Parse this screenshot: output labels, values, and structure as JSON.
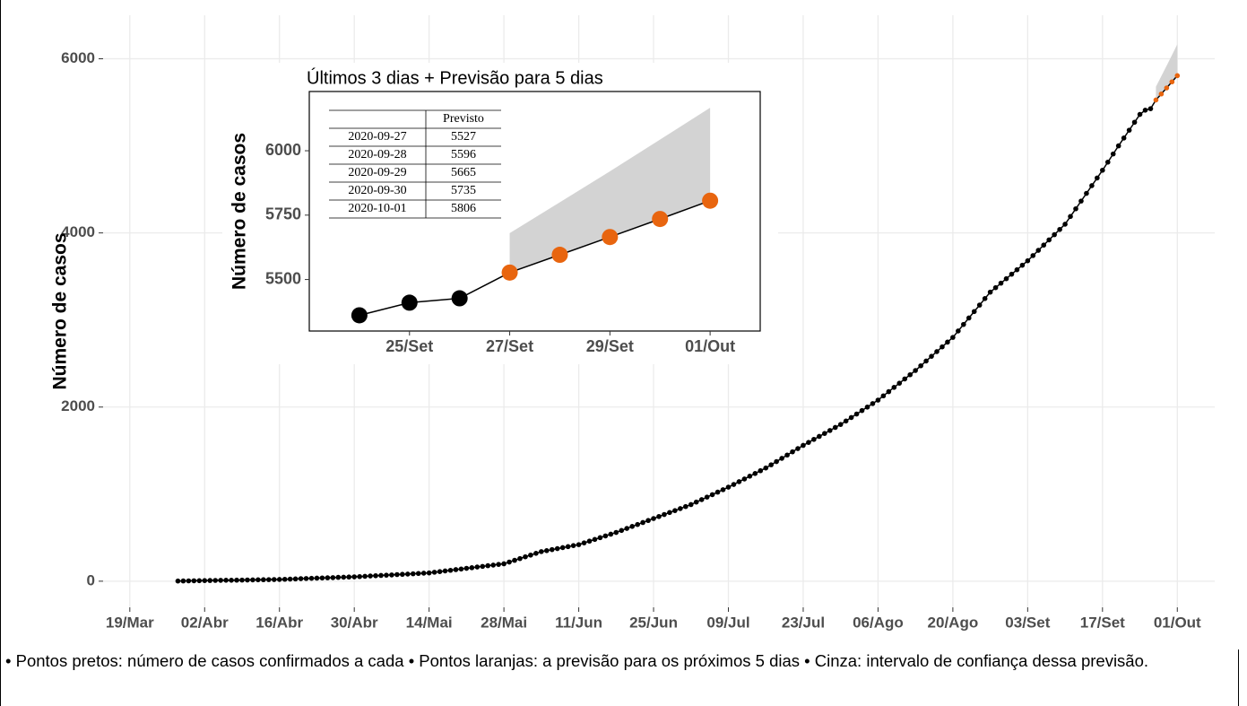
{
  "chart_data": [
    {
      "type": "line",
      "y_label": "Número de casos",
      "xlim": [
        "14/Mar",
        "08/Out"
      ],
      "xticks": [
        "19/Mar",
        "02/Abr",
        "16/Abr",
        "30/Abr",
        "14/Mai",
        "28/Mai",
        "11/Jun",
        "25/Jun",
        "09/Jul",
        "23/Jul",
        "06/Ago",
        "20/Ago",
        "03/Set",
        "17/Set",
        "01/Out"
      ],
      "ylim": [
        -300,
        6500
      ],
      "yticks": [
        0,
        2000,
        4000,
        6000
      ],
      "grid": true,
      "series": [
        {
          "color": "#000000",
          "x": [
            "28/Mar",
            "29/Mar",
            "30/Mar",
            "31/Mar",
            "01/Abr",
            "02/Abr",
            "03/Abr",
            "04/Abr",
            "05/Abr",
            "06/Abr",
            "07/Abr",
            "08/Abr",
            "09/Abr",
            "10/Abr",
            "11/Abr",
            "12/Abr",
            "13/Abr",
            "14/Abr",
            "15/Abr",
            "16/Abr",
            "17/Abr",
            "18/Abr",
            "19/Abr",
            "20/Abr",
            "21/Abr",
            "22/Abr",
            "23/Abr",
            "24/Abr",
            "25/Abr",
            "26/Abr",
            "27/Abr",
            "28/Abr",
            "29/Abr",
            "30/Abr",
            "01/Mai",
            "02/Mai",
            "03/Mai",
            "04/Mai",
            "05/Mai",
            "06/Mai",
            "07/Mai",
            "08/Mai",
            "09/Mai",
            "10/Mai",
            "11/Mai",
            "12/Mai",
            "13/Mai",
            "14/Mai",
            "15/Mai",
            "16/Mai",
            "17/Mai",
            "18/Mai",
            "19/Mai",
            "20/Mai",
            "21/Mai",
            "22/Mai",
            "23/Mai",
            "24/Mai",
            "25/Mai",
            "26/Mai",
            "27/Mai",
            "28/Mai",
            "29/Mai",
            "30/Mai",
            "31/Mai",
            "01/Jun",
            "02/Jun",
            "03/Jun",
            "04/Jun",
            "05/Jun",
            "06/Jun",
            "07/Jun",
            "08/Jun",
            "09/Jun",
            "10/Jun",
            "11/Jun",
            "12/Jun",
            "13/Jun",
            "14/Jun",
            "15/Jun",
            "16/Jun",
            "17/Jun",
            "18/Jun",
            "19/Jun",
            "20/Jun",
            "21/Jun",
            "22/Jun",
            "23/Jun",
            "24/Jun",
            "25/Jun",
            "26/Jun",
            "27/Jun",
            "28/Jun",
            "29/Jun",
            "30/Jun",
            "01/Jul",
            "02/Jul",
            "03/Jul",
            "04/Jul",
            "05/Jul",
            "06/Jul",
            "07/Jul",
            "08/Jul",
            "09/Jul",
            "10/Jul",
            "11/Jul",
            "12/Jul",
            "13/Jul",
            "14/Jul",
            "15/Jul",
            "16/Jul",
            "17/Jul",
            "18/Jul",
            "19/Jul",
            "20/Jul",
            "21/Jul",
            "22/Jul",
            "23/Jul",
            "24/Jul",
            "25/Jul",
            "26/Jul",
            "27/Jul",
            "28/Jul",
            "29/Jul",
            "30/Jul",
            "31/Jul",
            "01/Ago",
            "02/Ago",
            "03/Ago",
            "04/Ago",
            "05/Ago",
            "06/Ago",
            "07/Ago",
            "08/Ago",
            "09/Ago",
            "10/Ago",
            "11/Ago",
            "12/Ago",
            "13/Ago",
            "14/Ago",
            "15/Ago",
            "16/Ago",
            "17/Ago",
            "18/Ago",
            "19/Ago",
            "20/Ago",
            "21/Ago",
            "22/Ago",
            "23/Ago",
            "24/Ago",
            "25/Ago",
            "26/Ago",
            "27/Ago",
            "28/Ago",
            "29/Ago",
            "30/Ago",
            "31/Ago",
            "01/Set",
            "02/Set",
            "03/Set",
            "04/Set",
            "05/Set",
            "06/Set",
            "07/Set",
            "08/Set",
            "09/Set",
            "10/Set",
            "11/Set",
            "12/Set",
            "13/Set",
            "14/Set",
            "15/Set",
            "16/Set",
            "17/Set",
            "18/Set",
            "19/Set",
            "20/Set",
            "21/Set",
            "22/Set",
            "23/Set",
            "24/Set",
            "25/Set",
            "26/Set"
          ],
          "values": [
            2,
            3,
            4,
            5,
            6,
            7,
            8,
            9,
            10,
            11,
            11,
            12,
            13,
            14,
            15,
            16,
            17,
            18,
            19,
            20,
            22,
            24,
            26,
            29,
            31,
            33,
            35,
            37,
            39,
            41,
            44,
            46,
            48,
            50,
            53,
            56,
            60,
            63,
            66,
            69,
            72,
            76,
            79,
            82,
            85,
            89,
            92,
            95,
            103,
            110,
            118,
            125,
            133,
            140,
            148,
            155,
            163,
            170,
            178,
            185,
            193,
            200,
            220,
            240,
            260,
            280,
            300,
            320,
            340,
            351,
            363,
            374,
            386,
            397,
            409,
            420,
            440,
            460,
            480,
            500,
            520,
            540,
            560,
            583,
            606,
            629,
            651,
            674,
            697,
            720,
            743,
            766,
            789,
            811,
            834,
            857,
            880,
            909,
            937,
            966,
            994,
            1023,
            1051,
            1080,
            1111,
            1143,
            1174,
            1206,
            1237,
            1269,
            1300,
            1337,
            1374,
            1411,
            1449,
            1486,
            1523,
            1560,
            1594,
            1629,
            1663,
            1697,
            1731,
            1766,
            1800,
            1840,
            1880,
            1920,
            1960,
            2000,
            2040,
            2080,
            2129,
            2177,
            2226,
            2274,
            2323,
            2371,
            2420,
            2474,
            2529,
            2583,
            2637,
            2691,
            2746,
            2800,
            2874,
            2949,
            3023,
            3097,
            3171,
            3246,
            3320,
            3371,
            3423,
            3474,
            3526,
            3577,
            3629,
            3680,
            3740,
            3800,
            3860,
            3920,
            3980,
            4040,
            4100,
            4189,
            4277,
            4366,
            4454,
            4543,
            4631,
            4720,
            4813,
            4907,
            5000,
            5090,
            5180,
            5271,
            5361,
            5410,
            5427
          ]
        },
        {
          "color": "#e8650f",
          "x": [
            "27/Set",
            "28/Set",
            "29/Set",
            "30/Set",
            "01/Out"
          ],
          "values": [
            5527,
            5596,
            5665,
            5735,
            5806
          ]
        }
      ],
      "band": {
        "color": "#d3d3d3",
        "x": [
          "27/Set",
          "28/Set",
          "29/Set",
          "30/Set",
          "01/Out"
        ],
        "lower": [
          5527,
          5596,
          5665,
          5735,
          5806
        ],
        "upper": [
          5680,
          5800,
          5920,
          6043,
          6167
        ]
      }
    },
    {
      "type": "line",
      "title": "Últimos 3 dias + Previsão para 5 dias",
      "y_label": "Número de casos",
      "xlim": [
        "23/Set",
        "02/Out"
      ],
      "xticks": [
        "25/Set",
        "27/Set",
        "29/Set",
        "01/Out"
      ],
      "ylim": [
        5300,
        6230
      ],
      "yticks": [
        5500,
        5750,
        6000
      ],
      "grid": false,
      "series": [
        {
          "color": "#000000",
          "x": [
            "24/Set",
            "25/Set",
            "26/Set"
          ],
          "values": [
            5361,
            5410,
            5427
          ]
        },
        {
          "color": "#e8650f",
          "x": [
            "27/Set",
            "28/Set",
            "29/Set",
            "30/Set",
            "01/Out"
          ],
          "values": [
            5527,
            5596,
            5665,
            5735,
            5806
          ]
        }
      ],
      "band": {
        "color": "#d3d3d3",
        "x": [
          "27/Set",
          "28/Set",
          "29/Set",
          "30/Set",
          "01/Out"
        ],
        "lower": [
          5527,
          5596,
          5665,
          5735,
          5806
        ],
        "upper": [
          5680,
          5800,
          5920,
          6043,
          6167
        ]
      },
      "table": {
        "columns": [
          "Previsto"
        ],
        "rows": [
          [
            "2020-09-27",
            5527
          ],
          [
            "2020-09-28",
            5596
          ],
          [
            "2020-09-29",
            5665
          ],
          [
            "2020-09-30",
            5735
          ],
          [
            "2020-10-01",
            5806
          ]
        ]
      }
    }
  ],
  "caption": "• Pontos pretos: número de casos confirmados a cada • Pontos laranjas: a previsão para os próximos 5 dias • Cinza: intervalo de confiança dessa previsão."
}
